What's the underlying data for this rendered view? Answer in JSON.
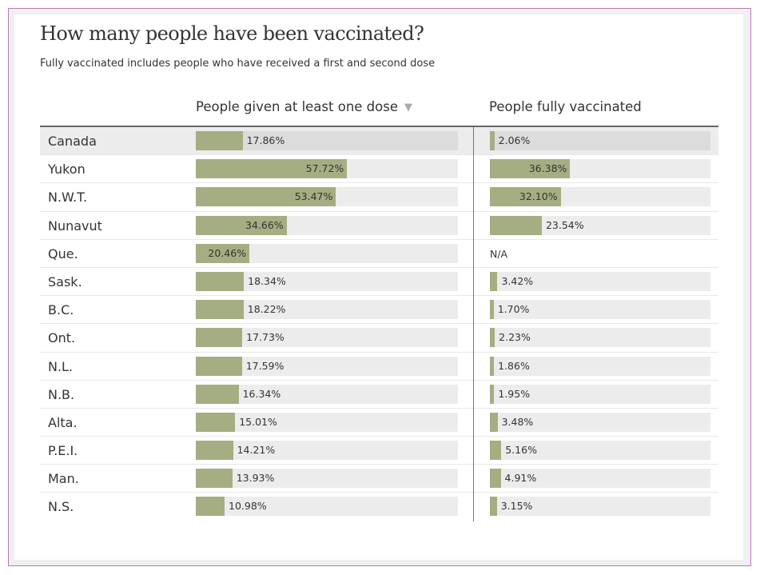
{
  "header": {
    "title": "How many people have been vaccinated?",
    "subtitle": "Fully vaccinated includes people who have received a first and second dose"
  },
  "columns": {
    "first_dose": "People given at least one dose",
    "first_dose_sort_icon": "▼",
    "fully": "People fully vaccinated"
  },
  "colors": {
    "bar": "#a5ad82",
    "track": "#ececec",
    "highlight_row": "#ececec",
    "frame_border": "#b57ab5"
  },
  "chart_data": {
    "type": "bar",
    "title": "How many people have been vaccinated?",
    "subtitle": "Fully vaccinated includes people who have received a first and second dose",
    "categories": [
      "Canada",
      "Yukon",
      "N.W.T.",
      "Nunavut",
      "Que.",
      "Sask.",
      "B.C.",
      "Ont.",
      "N.L.",
      "N.B.",
      "Alta.",
      "P.E.I.",
      "Man.",
      "N.S."
    ],
    "series": [
      {
        "name": "People given at least one dose",
        "values": [
          17.86,
          57.72,
          53.47,
          34.66,
          20.46,
          18.34,
          18.22,
          17.73,
          17.59,
          16.34,
          15.01,
          14.21,
          13.93,
          10.98
        ],
        "labels": [
          "17.86%",
          "57.72%",
          "53.47%",
          "34.66%",
          "20.46%",
          "18.34%",
          "18.22%",
          "17.73%",
          "17.59%",
          "16.34%",
          "15.01%",
          "14.21%",
          "13.93%",
          "10.98%"
        ]
      },
      {
        "name": "People fully vaccinated",
        "values": [
          2.06,
          36.38,
          32.1,
          23.54,
          null,
          3.42,
          1.7,
          2.23,
          1.86,
          1.95,
          3.48,
          5.16,
          4.91,
          3.15
        ],
        "labels": [
          "2.06%",
          "36.38%",
          "32.10%",
          "23.54%",
          "N/A",
          "3.42%",
          "1.70%",
          "2.23%",
          "1.86%",
          "1.95%",
          "3.48%",
          "5.16%",
          "4.91%",
          "3.15%"
        ]
      }
    ],
    "xlim": [
      0,
      100
    ],
    "highlighted_category": "Canada",
    "sorted_by": "People given at least one dose",
    "sort_order": "descending"
  }
}
